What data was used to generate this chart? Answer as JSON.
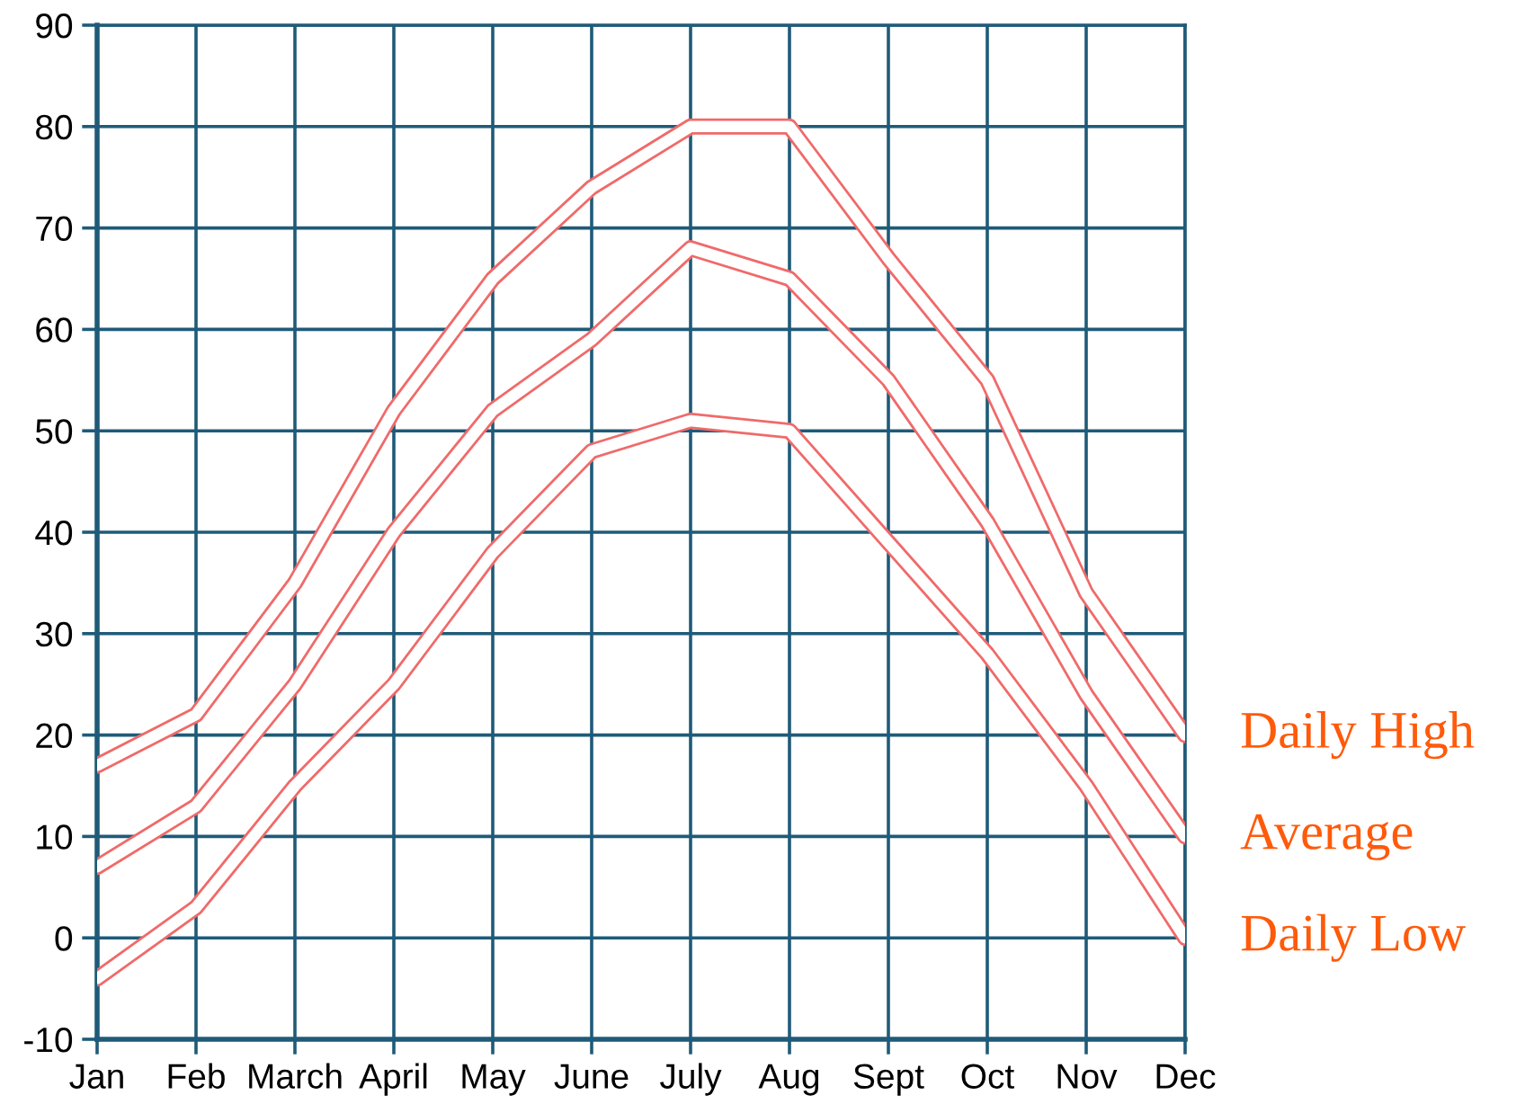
{
  "chart_data": {
    "type": "line",
    "categories": [
      "Jan",
      "Feb",
      "March",
      "April",
      "May",
      "June",
      "July",
      "Aug",
      "Sept",
      "Oct",
      "Nov",
      "Dec"
    ],
    "series": [
      {
        "name": "Daily High",
        "color": "#f06a6a",
        "values": [
          17,
          22,
          35,
          52,
          65,
          74,
          80,
          80,
          67,
          55,
          34,
          20
        ]
      },
      {
        "name": "Average",
        "color": "#f06a6a",
        "values": [
          7,
          13,
          25,
          40,
          52,
          59,
          68,
          65,
          55,
          41,
          24,
          10
        ]
      },
      {
        "name": "Daily Low",
        "color": "#f06a6a",
        "values": [
          -4,
          3,
          15,
          25,
          38,
          48,
          51,
          50,
          39,
          28,
          15,
          0
        ]
      }
    ],
    "ylim": [
      -10,
      90
    ],
    "yticks": [
      -10,
      0,
      10,
      20,
      30,
      40,
      50,
      60,
      70,
      80,
      90
    ],
    "grid": true,
    "legend": false,
    "marker": "none",
    "line_style": "solid"
  }
}
